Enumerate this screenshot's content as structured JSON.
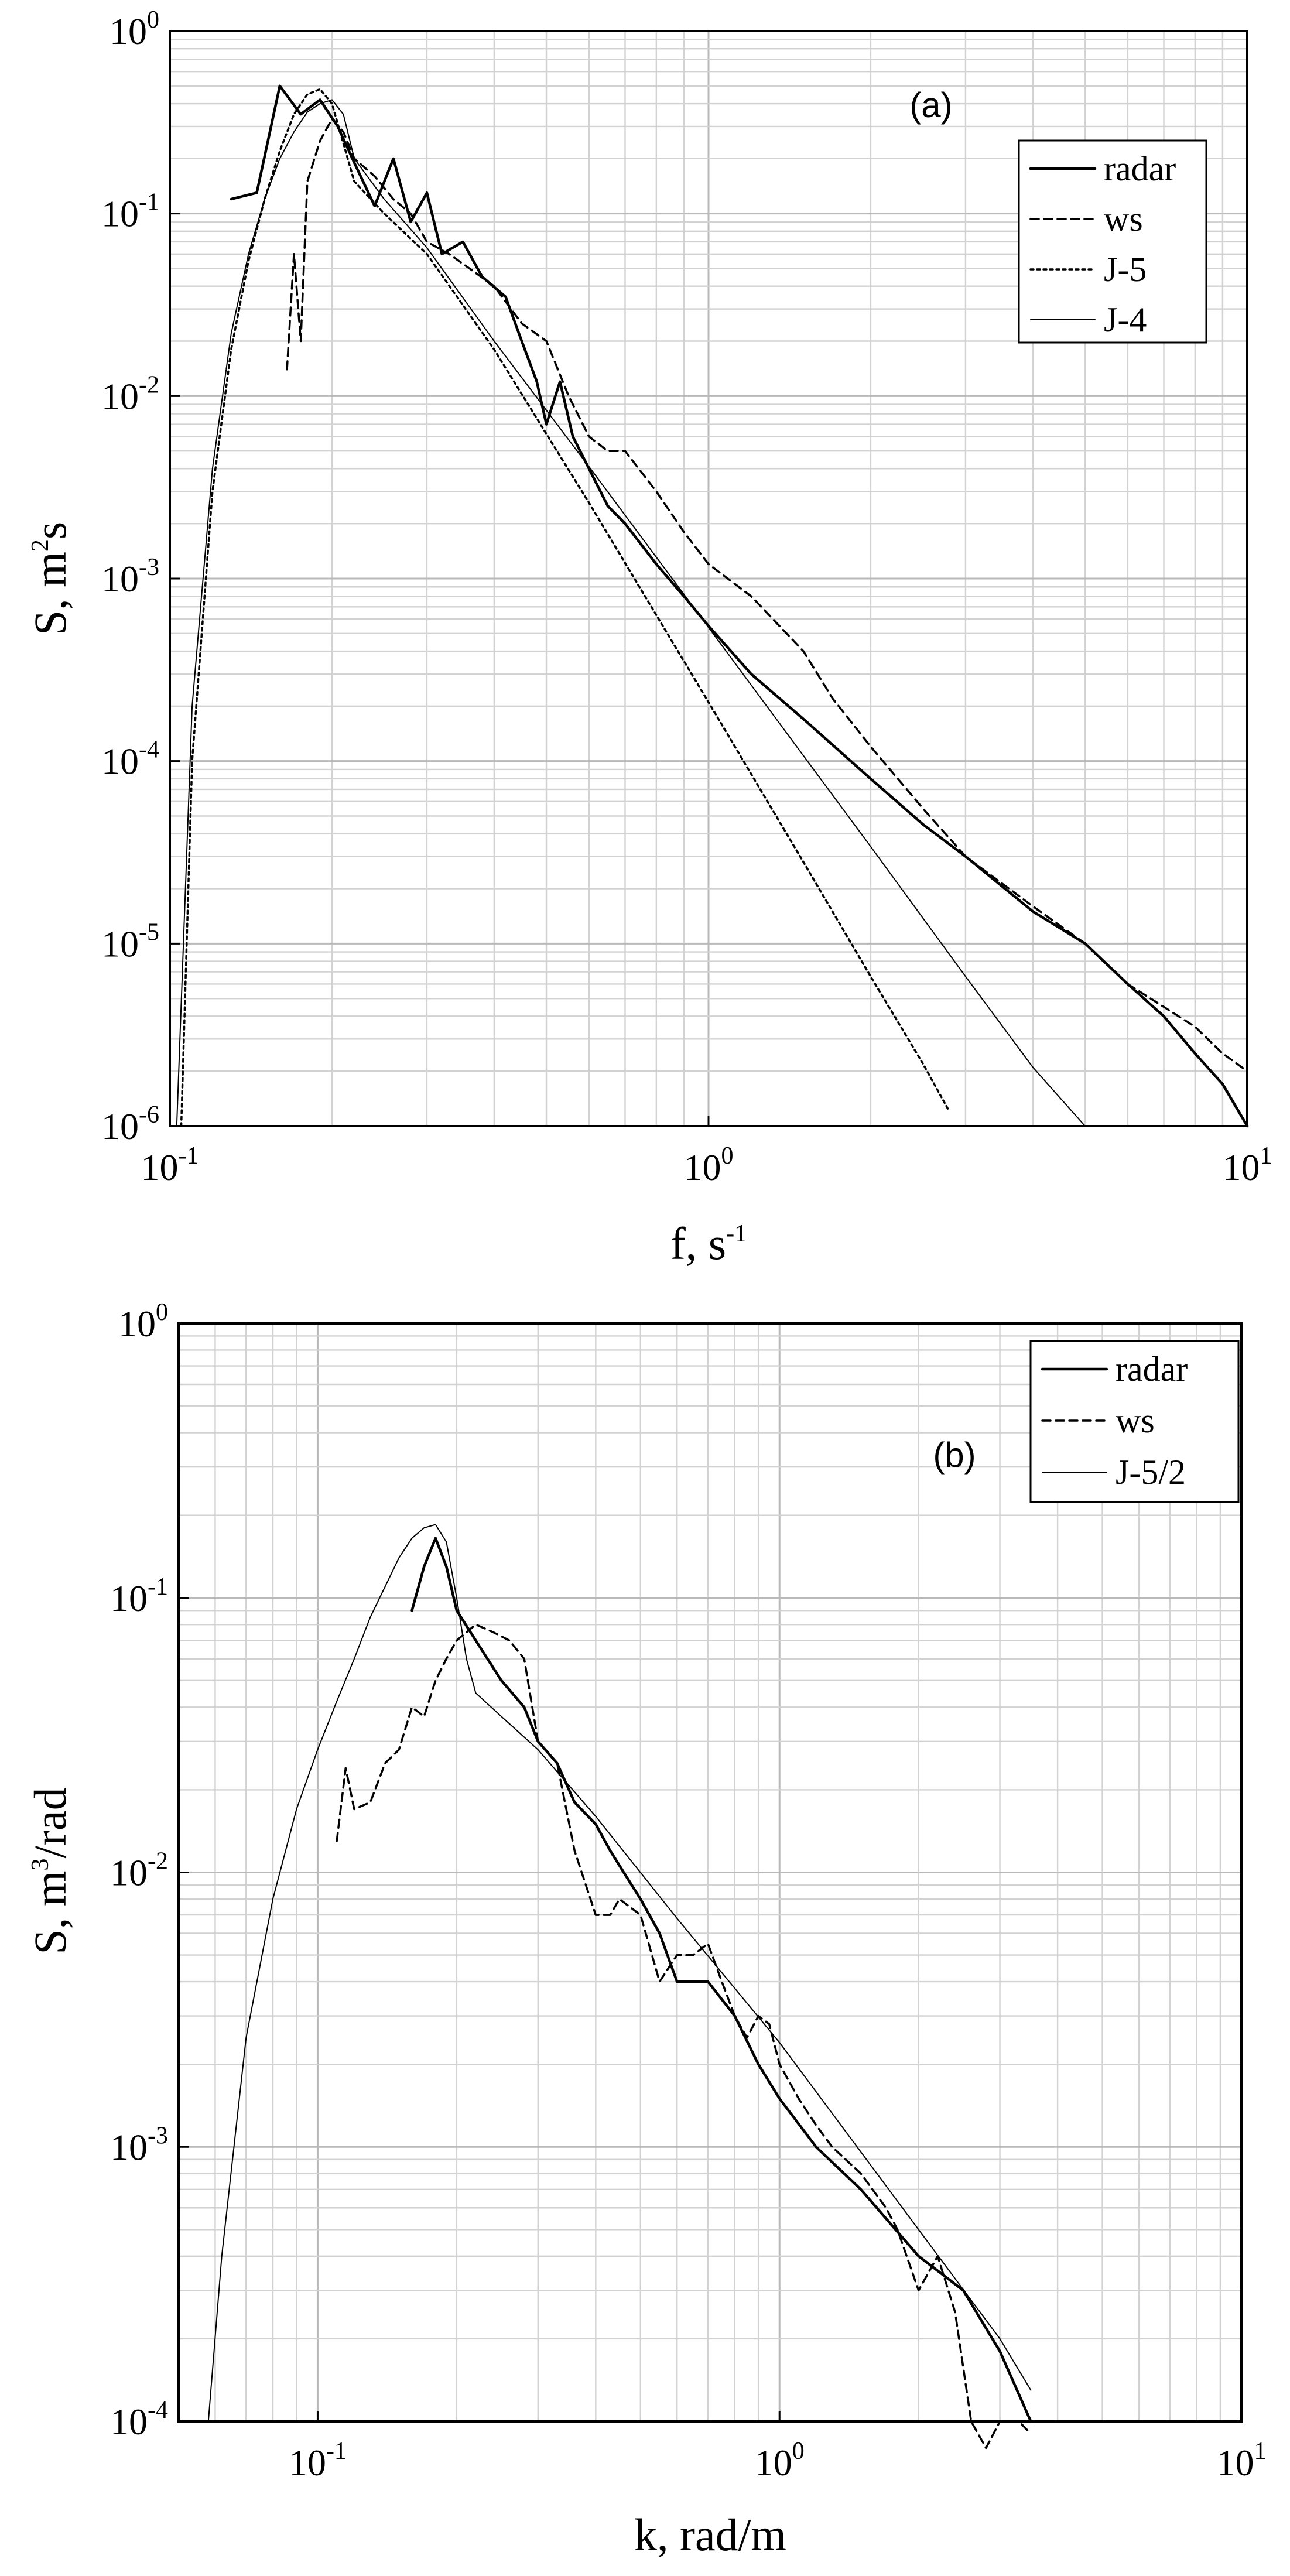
{
  "chart_data": [
    {
      "type": "line",
      "panel": "(a)",
      "xlabel": "f, s",
      "xlabel_sup": "-1",
      "ylabel": "S,  m",
      "ylabel_sup": "2",
      "ylabel_tail": "s",
      "x_scale": "log",
      "y_scale": "log",
      "xlim": [
        0.1,
        10
      ],
      "ylim": [
        1e-06,
        1
      ],
      "x_ticks": [
        {
          "base": "10",
          "exp": "-1",
          "v": 0.1
        },
        {
          "base": "10",
          "exp": "0",
          "v": 1
        },
        {
          "base": "10",
          "exp": "1",
          "v": 10
        }
      ],
      "y_ticks": [
        {
          "base": "10",
          "exp": "-6",
          "v": 1e-06
        },
        {
          "base": "10",
          "exp": "-5",
          "v": 1e-05
        },
        {
          "base": "10",
          "exp": "-4",
          "v": 0.0001
        },
        {
          "base": "10",
          "exp": "-3",
          "v": 0.001
        },
        {
          "base": "10",
          "exp": "-2",
          "v": 0.01
        },
        {
          "base": "10",
          "exp": "-1",
          "v": 0.1
        },
        {
          "base": "10",
          "exp": "0",
          "v": 1
        }
      ],
      "grid": true,
      "legend_position": "top-right",
      "series": [
        {
          "name": "radar",
          "style": "solid",
          "width": 4.5,
          "x": [
            0.13,
            0.145,
            0.16,
            0.175,
            0.19,
            0.205,
            0.22,
            0.24,
            0.26,
            0.28,
            0.3,
            0.32,
            0.35,
            0.38,
            0.42,
            0.45,
            0.48,
            0.5,
            0.53,
            0.56,
            0.6,
            0.65,
            0.7,
            0.8,
            0.9,
            1.0,
            1.2,
            1.5,
            2.0,
            2.5,
            3.0,
            4.0,
            5.0,
            6.0,
            7.0,
            8.0,
            9.0,
            10.0
          ],
          "y": [
            0.12,
            0.13,
            0.5,
            0.35,
            0.42,
            0.3,
            0.19,
            0.11,
            0.2,
            0.09,
            0.13,
            0.06,
            0.07,
            0.045,
            0.035,
            0.02,
            0.012,
            0.007,
            0.012,
            0.006,
            0.004,
            0.0025,
            0.002,
            0.0012,
            0.0008,
            0.00055,
            0.0003,
            0.00017,
            8e-05,
            4.5e-05,
            3e-05,
            1.5e-05,
            1e-05,
            6e-06,
            4e-06,
            2.5e-06,
            1.7e-06,
            1e-06
          ]
        },
        {
          "name": "ws",
          "style": "dashed",
          "width": 3.5,
          "x": [
            0.165,
            0.17,
            0.175,
            0.18,
            0.19,
            0.2,
            0.21,
            0.22,
            0.24,
            0.26,
            0.28,
            0.3,
            0.33,
            0.36,
            0.4,
            0.45,
            0.5,
            0.55,
            0.6,
            0.65,
            0.7,
            0.8,
            0.9,
            1.0,
            1.2,
            1.5,
            1.7,
            2.0,
            2.5,
            3.0,
            4.0,
            5.0,
            6.0,
            7.0,
            8.0,
            9.0,
            10.0
          ],
          "y": [
            0.014,
            0.06,
            0.02,
            0.15,
            0.25,
            0.33,
            0.28,
            0.2,
            0.16,
            0.12,
            0.1,
            0.07,
            0.06,
            0.05,
            0.04,
            0.025,
            0.02,
            0.01,
            0.006,
            0.005,
            0.005,
            0.003,
            0.0018,
            0.0012,
            0.0008,
            0.0004,
            0.00022,
            0.00012,
            5.5e-05,
            3e-05,
            1.6e-05,
            1e-05,
            6e-06,
            4.5e-06,
            3.5e-06,
            2.5e-06,
            2e-06
          ]
        },
        {
          "name": "J-5",
          "style": "dotted",
          "width": 3.5,
          "x": [
            0.105,
            0.11,
            0.12,
            0.13,
            0.14,
            0.15,
            0.16,
            0.17,
            0.18,
            0.19,
            0.2,
            0.22,
            0.25,
            0.3,
            0.4,
            0.6,
            1.0,
            1.5,
            2.0,
            2.5,
            2.8
          ],
          "y": [
            1e-06,
            0.0001,
            0.003,
            0.018,
            0.055,
            0.12,
            0.22,
            0.35,
            0.45,
            0.48,
            0.4,
            0.15,
            0.1,
            0.06,
            0.018,
            0.0026,
            0.00021,
            2.8e-05,
            6.6e-06,
            2.2e-06,
            1.2e-06
          ]
        },
        {
          "name": "J-4",
          "style": "solid",
          "width": 2,
          "x": [
            0.103,
            0.11,
            0.12,
            0.13,
            0.14,
            0.15,
            0.16,
            0.17,
            0.18,
            0.19,
            0.2,
            0.21,
            0.22,
            0.25,
            0.3,
            0.4,
            0.6,
            1.0,
            2.0,
            3.0,
            4.0,
            5.0
          ],
          "y": [
            1e-06,
            0.0002,
            0.004,
            0.022,
            0.06,
            0.12,
            0.2,
            0.28,
            0.36,
            0.4,
            0.42,
            0.35,
            0.2,
            0.12,
            0.065,
            0.02,
            0.0041,
            0.00054,
            3.4e-05,
            6.6e-06,
            2.1e-06,
            1e-06
          ]
        }
      ]
    },
    {
      "type": "line",
      "panel": "(b)",
      "xlabel": "k, rad/m",
      "xlabel_sup": "",
      "ylabel": "S,  m",
      "ylabel_sup": "3",
      "ylabel_tail": "/rad",
      "x_scale": "log",
      "y_scale": "log",
      "xlim": [
        0.05,
        10
      ],
      "ylim": [
        0.0001,
        1
      ],
      "x_ticks": [
        {
          "base": "10",
          "exp": "-1",
          "v": 0.1
        },
        {
          "base": "10",
          "exp": "0",
          "v": 1
        },
        {
          "base": "10",
          "exp": "1",
          "v": 10
        }
      ],
      "y_ticks": [
        {
          "base": "10",
          "exp": "-4",
          "v": 0.0001
        },
        {
          "base": "10",
          "exp": "-3",
          "v": 0.001
        },
        {
          "base": "10",
          "exp": "-2",
          "v": 0.01
        },
        {
          "base": "10",
          "exp": "-1",
          "v": 0.1
        },
        {
          "base": "10",
          "exp": "0",
          "v": 1
        }
      ],
      "grid": true,
      "legend_position": "top-right",
      "series": [
        {
          "name": "radar",
          "style": "solid",
          "width": 4.5,
          "x": [
            0.16,
            0.17,
            0.18,
            0.19,
            0.2,
            0.22,
            0.25,
            0.28,
            0.3,
            0.33,
            0.36,
            0.4,
            0.43,
            0.46,
            0.5,
            0.55,
            0.6,
            0.65,
            0.7,
            0.8,
            0.9,
            1.0,
            1.2,
            1.5,
            2.0,
            2.5,
            3.0,
            3.5
          ],
          "y": [
            0.09,
            0.13,
            0.165,
            0.13,
            0.09,
            0.07,
            0.05,
            0.04,
            0.03,
            0.025,
            0.018,
            0.015,
            0.012,
            0.01,
            0.008,
            0.006,
            0.004,
            0.004,
            0.004,
            0.003,
            0.002,
            0.0015,
            0.001,
            0.0007,
            0.0004,
            0.0003,
            0.00018,
            0.0001
          ]
        },
        {
          "name": "ws",
          "style": "dashed",
          "width": 3.5,
          "x": [
            0.11,
            0.115,
            0.12,
            0.13,
            0.14,
            0.15,
            0.16,
            0.17,
            0.18,
            0.19,
            0.2,
            0.21,
            0.22,
            0.24,
            0.26,
            0.28,
            0.3,
            0.33,
            0.36,
            0.4,
            0.43,
            0.45,
            0.5,
            0.55,
            0.6,
            0.65,
            0.7,
            0.75,
            0.8,
            0.85,
            0.9,
            0.95,
            1.0,
            1.1,
            1.2,
            1.3,
            1.5,
            1.7,
            1.8,
            2.0,
            2.2,
            2.4,
            2.6,
            2.8,
            3.0,
            3.3,
            3.5
          ],
          "y": [
            0.013,
            0.024,
            0.017,
            0.018,
            0.025,
            0.028,
            0.04,
            0.037,
            0.05,
            0.06,
            0.07,
            0.075,
            0.08,
            0.075,
            0.07,
            0.06,
            0.03,
            0.025,
            0.012,
            0.007,
            0.007,
            0.008,
            0.007,
            0.004,
            0.005,
            0.005,
            0.0055,
            0.004,
            0.003,
            0.0025,
            0.003,
            0.0028,
            0.002,
            0.0015,
            0.0012,
            0.001,
            0.0008,
            0.0006,
            0.0005,
            0.0003,
            0.0004,
            0.00025,
            0.0001,
            8e-05,
            0.0001,
            0.0001,
            9e-05
          ]
        },
        {
          "name": "J-5/2",
          "style": "solid",
          "width": 2,
          "x": [
            0.058,
            0.062,
            0.07,
            0.08,
            0.09,
            0.1,
            0.11,
            0.12,
            0.13,
            0.14,
            0.15,
            0.16,
            0.17,
            0.18,
            0.19,
            0.2,
            0.21,
            0.22,
            0.25,
            0.3,
            0.4,
            0.6,
            1.0,
            2.0,
            3.0,
            3.5
          ],
          "y": [
            0.0001,
            0.0004,
            0.0025,
            0.008,
            0.017,
            0.028,
            0.042,
            0.06,
            0.085,
            0.11,
            0.14,
            0.165,
            0.18,
            0.185,
            0.16,
            0.1,
            0.06,
            0.045,
            0.037,
            0.028,
            0.016,
            0.0068,
            0.0024,
            0.0005,
            0.0002,
            0.00013
          ]
        }
      ]
    }
  ]
}
